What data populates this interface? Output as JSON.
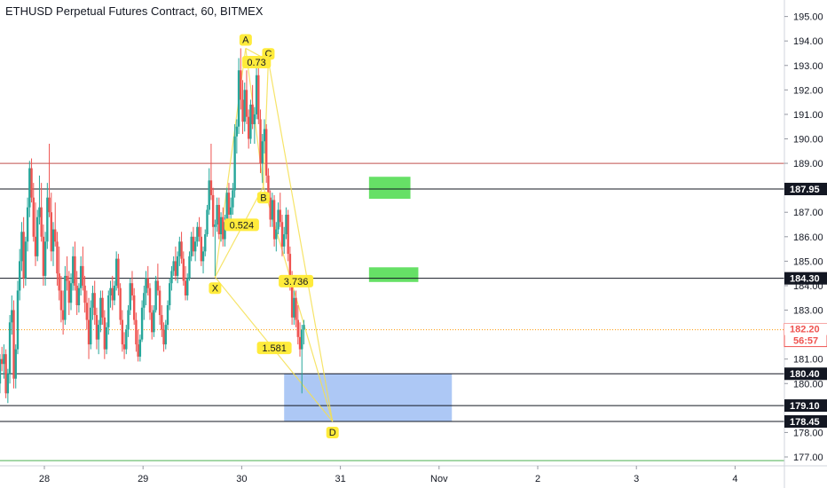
{
  "chart_data": {
    "type": "candlestick",
    "title": "ETHUSD Perpetual Futures Contract, 60, BITMEX",
    "ylim": [
      176.7,
      195.5
    ],
    "y_ticks": [
      177.0,
      178.0,
      179.0,
      180.0,
      181.0,
      182.0,
      183.0,
      184.0,
      185.0,
      186.0,
      187.0,
      188.0,
      189.0,
      190.0,
      191.0,
      192.0,
      193.0,
      194.0,
      195.0
    ],
    "x_ticks": [
      {
        "label": "28",
        "day": 28
      },
      {
        "label": "29",
        "day": 29
      },
      {
        "label": "30",
        "day": 30
      },
      {
        "label": "31",
        "day": 31
      },
      {
        "label": "Nov",
        "day": 32
      },
      {
        "label": "2",
        "day": 33
      },
      {
        "label": "3",
        "day": 34
      },
      {
        "label": "4",
        "day": 35
      }
    ],
    "horizontal_lines": [
      {
        "price": 187.95,
        "label": "187.95",
        "color": "#131722"
      },
      {
        "price": 184.3,
        "label": "184.30",
        "color": "#131722"
      },
      {
        "price": 180.4,
        "label": "180.40",
        "color": "#131722"
      },
      {
        "price": 179.1,
        "label": "179.10",
        "color": "#131722"
      },
      {
        "price": 178.45,
        "label": "178.45",
        "color": "#131722"
      },
      {
        "price": 189.0,
        "label": "",
        "color": "#c0504d"
      },
      {
        "price": 176.85,
        "label": "",
        "color": "#4caf50"
      }
    ],
    "current_price": {
      "price": 182.2,
      "label": "182.20",
      "countdown": "56:57",
      "color": "#ef5350"
    },
    "zones": [
      {
        "kind": "target",
        "day_start": 31.29,
        "day_end": 31.71,
        "price_low": 187.55,
        "price_high": 188.45,
        "color": "#66e066"
      },
      {
        "kind": "target",
        "day_start": 31.29,
        "day_end": 31.79,
        "price_low": 184.15,
        "price_high": 184.75,
        "color": "#66e066"
      },
      {
        "kind": "entry",
        "day_start": 30.43,
        "day_end": 32.13,
        "price_low": 178.45,
        "price_high": 180.4,
        "color": "#a4c2f4"
      }
    ],
    "pattern": {
      "points": [
        {
          "label": "X",
          "day": 29.73,
          "price": 184.35
        },
        {
          "label": "A",
          "day": 30.04,
          "price": 193.7
        },
        {
          "label": "B",
          "day": 30.22,
          "price": 188.05
        },
        {
          "label": "C",
          "day": 30.27,
          "price": 193.2
        },
        {
          "label": "D",
          "day": 30.92,
          "price": 178.45
        }
      ],
      "ratios": [
        {
          "label": "0.524",
          "day": 30.0,
          "price": 186.45
        },
        {
          "label": "0.73",
          "day": 30.15,
          "price": 193.1
        },
        {
          "label": "3.736",
          "day": 30.55,
          "price": 184.15
        },
        {
          "label": "1.581",
          "day": 30.33,
          "price": 181.42
        }
      ]
    },
    "candles": [
      [
        27.55,
        180.0,
        181.2,
        179.6,
        181.0
      ],
      [
        27.57,
        181.0,
        181.5,
        180.5,
        180.8
      ],
      [
        27.59,
        180.8,
        181.6,
        180.2,
        181.2
      ],
      [
        27.61,
        181.2,
        181.4,
        179.4,
        179.6
      ],
      [
        27.63,
        179.6,
        180.6,
        179.2,
        180.4
      ],
      [
        27.65,
        180.4,
        182.8,
        180.0,
        182.5
      ],
      [
        27.67,
        182.5,
        183.6,
        182.0,
        183.0
      ],
      [
        27.69,
        183.0,
        183.4,
        179.8,
        180.2
      ],
      [
        27.71,
        180.2,
        181.6,
        179.8,
        181.4
      ],
      [
        27.73,
        181.4,
        184.2,
        181.2,
        183.8
      ],
      [
        27.75,
        183.8,
        185.5,
        183.4,
        185.0
      ],
      [
        27.77,
        185.0,
        186.6,
        184.6,
        186.2
      ],
      [
        27.79,
        186.2,
        186.8,
        183.9,
        184.3
      ],
      [
        27.81,
        184.3,
        186.0,
        184.0,
        185.8
      ],
      [
        27.83,
        185.8,
        187.6,
        185.4,
        187.2
      ],
      [
        27.85,
        187.2,
        189.1,
        186.8,
        188.8
      ],
      [
        27.87,
        188.8,
        189.2,
        187.4,
        187.6
      ],
      [
        27.89,
        187.6,
        188.2,
        185.8,
        186.0
      ],
      [
        27.91,
        186.0,
        187.4,
        184.8,
        185.2
      ],
      [
        27.93,
        185.2,
        187.1,
        185.0,
        186.8
      ],
      [
        27.95,
        186.8,
        188.5,
        186.5,
        187.2
      ],
      [
        27.97,
        187.2,
        188.2,
        185.8,
        186.0
      ],
      [
        27.99,
        186.0,
        186.5,
        184.0,
        184.4
      ],
      [
        28.01,
        184.4,
        186.2,
        184.0,
        185.8
      ],
      [
        28.03,
        185.8,
        188.2,
        185.5,
        187.6
      ],
      [
        28.05,
        187.6,
        189.8,
        186.8,
        187.0
      ],
      [
        28.07,
        187.0,
        187.8,
        185.0,
        185.4
      ],
      [
        28.09,
        185.4,
        186.6,
        184.8,
        186.3
      ],
      [
        28.11,
        186.3,
        187.4,
        185.6,
        185.8
      ],
      [
        28.13,
        185.8,
        186.2,
        184.0,
        184.5
      ],
      [
        28.15,
        184.5,
        185.6,
        183.4,
        183.8
      ],
      [
        28.17,
        183.8,
        184.4,
        182.5,
        183.0
      ],
      [
        28.19,
        183.0,
        183.8,
        182.0,
        182.6
      ],
      [
        28.21,
        182.6,
        184.8,
        182.4,
        184.4
      ],
      [
        28.23,
        184.4,
        185.2,
        183.8,
        184.2
      ],
      [
        28.25,
        184.2,
        184.6,
        182.8,
        183.3
      ],
      [
        28.27,
        183.3,
        184.5,
        183.0,
        184.1
      ],
      [
        28.29,
        184.1,
        185.6,
        183.8,
        185.2
      ],
      [
        28.31,
        185.2,
        185.8,
        183.8,
        184.0
      ],
      [
        28.33,
        184.0,
        184.6,
        182.8,
        183.2
      ],
      [
        28.35,
        183.2,
        184.1,
        182.9,
        183.9
      ],
      [
        28.37,
        183.9,
        185.2,
        183.6,
        184.8
      ],
      [
        28.39,
        184.8,
        185.6,
        183.8,
        184.0
      ],
      [
        28.41,
        184.0,
        184.4,
        182.9,
        183.3
      ],
      [
        28.43,
        183.3,
        183.8,
        182.2,
        182.6
      ],
      [
        28.45,
        182.6,
        183.5,
        181.0,
        181.6
      ],
      [
        28.47,
        181.6,
        183.4,
        181.4,
        183.1
      ],
      [
        28.49,
        183.1,
        184.0,
        182.6,
        183.7
      ],
      [
        28.51,
        183.7,
        184.2,
        182.4,
        182.8
      ],
      [
        28.53,
        182.8,
        183.1,
        181.4,
        181.8
      ],
      [
        28.55,
        181.8,
        182.6,
        181.2,
        182.4
      ],
      [
        28.57,
        182.4,
        183.8,
        182.1,
        183.5
      ],
      [
        28.59,
        183.5,
        183.8,
        182.4,
        182.7
      ],
      [
        28.61,
        182.7,
        183.0,
        181.0,
        181.4
      ],
      [
        28.63,
        181.4,
        182.5,
        181.2,
        182.3
      ],
      [
        28.65,
        182.3,
        183.8,
        182.0,
        183.6
      ],
      [
        28.67,
        183.6,
        184.2,
        183.1,
        183.9
      ],
      [
        28.69,
        183.9,
        184.4,
        183.0,
        183.4
      ],
      [
        28.71,
        183.4,
        184.2,
        183.2,
        184.0
      ],
      [
        28.73,
        184.0,
        185.4,
        183.8,
        185.1
      ],
      [
        28.75,
        185.1,
        185.3,
        183.6,
        183.9
      ],
      [
        28.77,
        183.9,
        184.1,
        182.4,
        182.6
      ],
      [
        28.79,
        182.6,
        183.0,
        181.3,
        181.6
      ],
      [
        28.81,
        181.6,
        182.1,
        181.0,
        181.4
      ],
      [
        28.83,
        181.4,
        182.4,
        181.2,
        182.2
      ],
      [
        28.85,
        182.2,
        183.2,
        181.9,
        183.0
      ],
      [
        28.87,
        183.0,
        184.3,
        182.8,
        184.1
      ],
      [
        28.89,
        184.1,
        184.6,
        183.4,
        183.6
      ],
      [
        28.91,
        183.6,
        183.9,
        182.4,
        182.6
      ],
      [
        28.93,
        182.6,
        182.9,
        181.3,
        181.6
      ],
      [
        28.95,
        181.6,
        182.2,
        180.9,
        181.1
      ],
      [
        28.97,
        181.1,
        182.0,
        180.9,
        181.8
      ],
      [
        28.99,
        181.8,
        183.4,
        181.7,
        183.1
      ],
      [
        29.01,
        183.1,
        184.0,
        182.6,
        183.7
      ],
      [
        29.03,
        183.7,
        184.6,
        183.2,
        184.3
      ],
      [
        29.05,
        184.3,
        184.8,
        183.6,
        183.9
      ],
      [
        29.07,
        183.9,
        184.1,
        182.6,
        182.9
      ],
      [
        29.09,
        182.9,
        183.2,
        181.8,
        182.1
      ],
      [
        29.11,
        182.1,
        183.2,
        181.9,
        183.0
      ],
      [
        29.13,
        183.0,
        184.4,
        182.9,
        184.2
      ],
      [
        29.15,
        184.2,
        184.9,
        183.6,
        183.8
      ],
      [
        29.17,
        183.8,
        184.0,
        182.4,
        182.8
      ],
      [
        29.19,
        182.8,
        183.2,
        181.9,
        182.2
      ],
      [
        29.21,
        182.2,
        182.5,
        181.3,
        181.6
      ],
      [
        29.23,
        181.6,
        182.6,
        181.4,
        182.4
      ],
      [
        29.25,
        182.4,
        183.4,
        182.2,
        183.2
      ],
      [
        29.27,
        183.2,
        184.3,
        183.0,
        184.1
      ],
      [
        29.29,
        184.1,
        184.8,
        183.8,
        184.6
      ],
      [
        29.31,
        184.6,
        185.2,
        184.4,
        185.0
      ],
      [
        29.33,
        185.0,
        185.6,
        184.2,
        184.4
      ],
      [
        29.35,
        184.4,
        185.4,
        184.1,
        185.2
      ],
      [
        29.37,
        185.2,
        186.0,
        184.8,
        185.8
      ],
      [
        29.39,
        185.8,
        186.2,
        184.9,
        185.1
      ],
      [
        29.41,
        185.1,
        185.4,
        184.0,
        184.2
      ],
      [
        29.43,
        184.2,
        184.8,
        183.4,
        183.6
      ],
      [
        29.45,
        183.6,
        184.5,
        183.4,
        184.3
      ],
      [
        29.47,
        184.3,
        185.4,
        184.2,
        185.2
      ],
      [
        29.49,
        185.2,
        186.2,
        185.0,
        186.0
      ],
      [
        29.51,
        186.0,
        186.4,
        185.2,
        185.4
      ],
      [
        29.53,
        185.4,
        186.0,
        185.0,
        185.8
      ],
      [
        29.55,
        185.8,
        186.6,
        185.6,
        186.4
      ],
      [
        29.57,
        186.4,
        186.8,
        185.8,
        186.0
      ],
      [
        29.59,
        186.0,
        186.4,
        184.8,
        185.0
      ],
      [
        29.61,
        185.0,
        185.6,
        184.5,
        185.4
      ],
      [
        29.63,
        185.4,
        186.3,
        185.2,
        186.1
      ],
      [
        29.65,
        186.1,
        187.3,
        186.0,
        187.1
      ],
      [
        29.67,
        187.1,
        188.8,
        186.9,
        188.3
      ],
      [
        29.69,
        188.3,
        189.8,
        187.5,
        187.7
      ],
      [
        29.71,
        187.7,
        188.0,
        186.0,
        186.4
      ],
      [
        29.73,
        186.4,
        186.7,
        184.4,
        186.5
      ],
      [
        29.75,
        186.5,
        187.6,
        186.2,
        187.3
      ],
      [
        29.77,
        187.3,
        187.6,
        185.9,
        186.1
      ],
      [
        29.79,
        186.1,
        187.0,
        185.8,
        186.8
      ],
      [
        29.81,
        186.8,
        187.2,
        185.6,
        185.9
      ],
      [
        29.83,
        185.9,
        186.9,
        185.6,
        186.6
      ],
      [
        29.85,
        186.6,
        188.0,
        186.4,
        187.8
      ],
      [
        29.87,
        187.8,
        188.2,
        186.6,
        186.9
      ],
      [
        29.89,
        186.9,
        187.6,
        186.4,
        187.2
      ],
      [
        29.91,
        187.2,
        188.2,
        186.9,
        187.9
      ],
      [
        29.93,
        187.9,
        190.6,
        187.6,
        190.1
      ],
      [
        29.95,
        190.1,
        190.8,
        189.4,
        190.5
      ],
      [
        29.97,
        190.5,
        193.3,
        190.2,
        192.8
      ],
      [
        29.99,
        192.8,
        193.7,
        191.2,
        191.6
      ],
      [
        30.01,
        191.6,
        192.4,
        190.2,
        190.7
      ],
      [
        30.03,
        190.7,
        192.3,
        190.3,
        192.0
      ],
      [
        30.05,
        192.0,
        192.8,
        190.6,
        190.9
      ],
      [
        30.07,
        190.9,
        191.2,
        189.6,
        190.0
      ],
      [
        30.09,
        190.0,
        191.6,
        189.8,
        191.4
      ],
      [
        30.11,
        191.4,
        192.2,
        190.4,
        190.6
      ],
      [
        30.13,
        190.6,
        191.3,
        189.8,
        191.0
      ],
      [
        30.15,
        191.0,
        193.1,
        190.8,
        192.6
      ],
      [
        30.17,
        192.6,
        192.9,
        190.6,
        190.8
      ],
      [
        30.19,
        190.8,
        191.2,
        188.6,
        189.0
      ],
      [
        30.21,
        189.0,
        190.2,
        188.2,
        189.9
      ],
      [
        30.23,
        189.9,
        190.8,
        189.4,
        190.4
      ],
      [
        30.25,
        190.4,
        190.6,
        188.2,
        188.5
      ],
      [
        30.27,
        188.5,
        188.8,
        187.4,
        187.6
      ],
      [
        30.29,
        187.6,
        187.9,
        186.4,
        186.7
      ],
      [
        30.31,
        186.7,
        187.8,
        186.4,
        187.5
      ],
      [
        30.33,
        187.5,
        187.7,
        185.6,
        185.9
      ],
      [
        30.35,
        185.9,
        186.6,
        185.4,
        186.3
      ],
      [
        30.37,
        186.3,
        187.4,
        186.1,
        187.1
      ],
      [
        30.39,
        187.1,
        187.8,
        186.4,
        186.6
      ],
      [
        30.41,
        186.6,
        186.9,
        185.2,
        185.6
      ],
      [
        30.43,
        185.6,
        186.4,
        185.3,
        186.1
      ],
      [
        30.45,
        186.1,
        187.2,
        185.9,
        186.9
      ],
      [
        30.47,
        186.9,
        187.1,
        185.0,
        185.3
      ],
      [
        30.49,
        185.3,
        185.6,
        183.8,
        184.2
      ],
      [
        30.51,
        184.2,
        184.6,
        182.4,
        182.7
      ],
      [
        30.53,
        182.7,
        183.8,
        182.4,
        183.5
      ],
      [
        30.55,
        183.5,
        183.8,
        182.3,
        182.6
      ],
      [
        30.57,
        182.6,
        183.2,
        181.6,
        181.9
      ],
      [
        30.59,
        181.9,
        182.5,
        181.1,
        181.4
      ],
      [
        30.61,
        181.4,
        182.4,
        179.6,
        182.2
      ],
      [
        30.63,
        182.2,
        182.6,
        181.6,
        182.4
      ]
    ]
  }
}
